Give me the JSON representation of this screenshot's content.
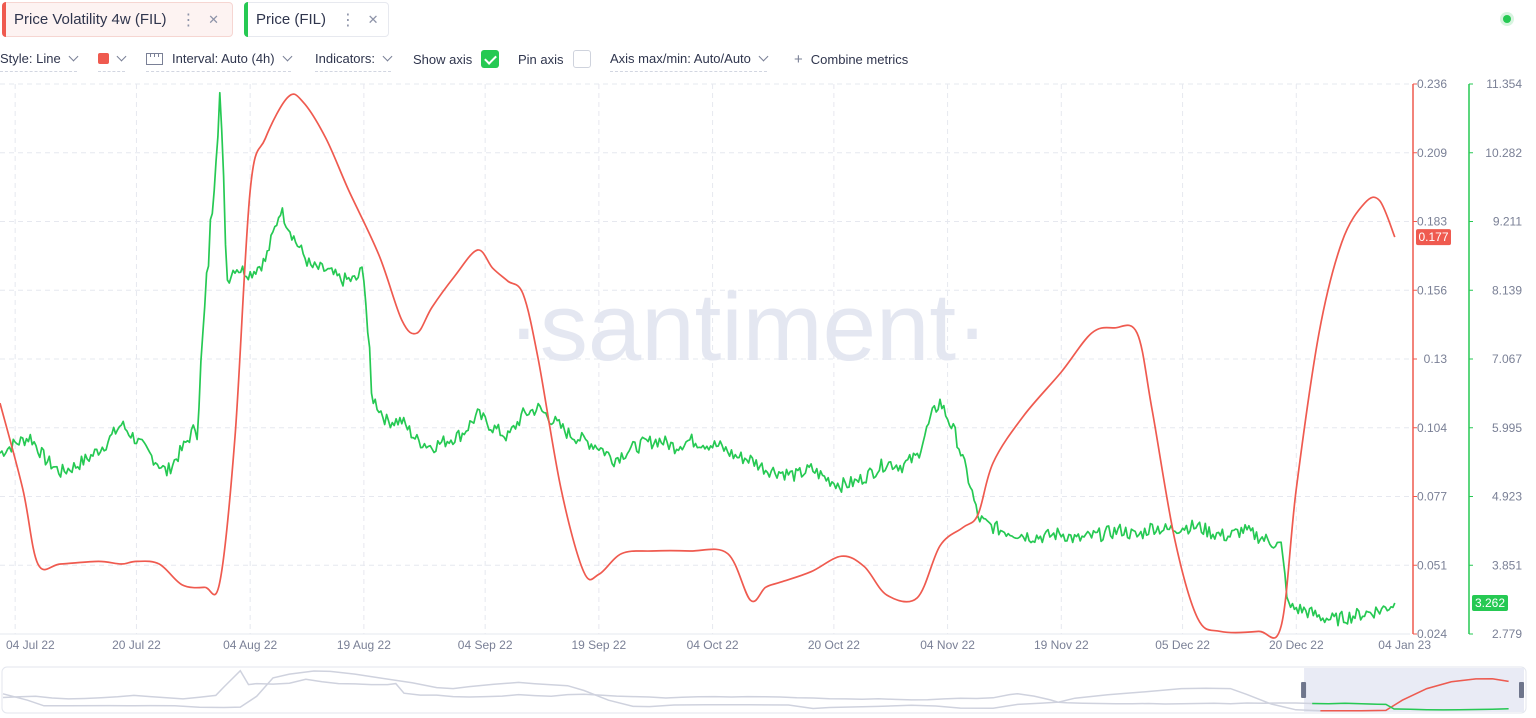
{
  "tabs": [
    {
      "label": "Price Volatility 4w (FIL)",
      "color": "#ef5a4f"
    },
    {
      "label": "Price (FIL)",
      "color": "#26c953"
    }
  ],
  "icons": {
    "menu": "⋮",
    "close": "✕"
  },
  "toolbar": {
    "style": "Style: Line",
    "interval": "Interval: Auto (4h)",
    "indicators": "Indicators:",
    "show_axis": "Show axis",
    "show_axis_checked": true,
    "pin_axis": "Pin axis",
    "pin_axis_checked": false,
    "axis_maxmin": "Axis max/min: Auto/Auto",
    "combine": "Combine metrics"
  },
  "watermark": "·santiment·",
  "chart_data": {
    "type": "line",
    "x_ticks": [
      "04 Jul 22",
      "20 Jul 22",
      "04 Aug 22",
      "19 Aug 22",
      "04 Sep 22",
      "19 Sep 22",
      "04 Oct 22",
      "20 Oct 22",
      "04 Nov 22",
      "19 Nov 22",
      "05 Dec 22",
      "20 Dec 22",
      "04 Jan 23"
    ],
    "x_range": [
      "2022-07-02",
      "2023-01-04"
    ],
    "axes": [
      {
        "series": "Price Volatility 4w (FIL)",
        "color": "#ef5a4f",
        "ticks": [
          "0.236",
          "0.209",
          "0.183",
          "0.156",
          "0.13",
          "0.104",
          "0.077",
          "0.051",
          "0.024"
        ],
        "min": 0.024,
        "max": 0.236,
        "current": "0.177"
      },
      {
        "series": "Price (FIL)",
        "color": "#26c953",
        "ticks": [
          "11.354",
          "10.282",
          "9.211",
          "8.139",
          "7.067",
          "5.995",
          "4.923",
          "3.851",
          "2.779"
        ],
        "min": 2.779,
        "max": 11.354,
        "current": "3.262"
      }
    ],
    "series": [
      {
        "name": "Price Volatility 4w (FIL)",
        "color": "#ef5a4f",
        "x": [
          "2022-07-02",
          "2022-07-05",
          "2022-07-07",
          "2022-07-10",
          "2022-07-15",
          "2022-07-18",
          "2022-07-20",
          "2022-07-23",
          "2022-07-26",
          "2022-07-29",
          "2022-07-31",
          "2022-08-02",
          "2022-08-04",
          "2022-08-06",
          "2022-08-09",
          "2022-08-11",
          "2022-08-14",
          "2022-08-17",
          "2022-08-21",
          "2022-08-24",
          "2022-08-26",
          "2022-08-28",
          "2022-08-31",
          "2022-09-03",
          "2022-09-05",
          "2022-09-07",
          "2022-09-09",
          "2022-09-11",
          "2022-09-14",
          "2022-09-17",
          "2022-09-19",
          "2022-09-22",
          "2022-09-26",
          "2022-10-01",
          "2022-10-06",
          "2022-10-09",
          "2022-10-11",
          "2022-10-13",
          "2022-10-17",
          "2022-10-21",
          "2022-10-24",
          "2022-10-27",
          "2022-10-31",
          "2022-11-03",
          "2022-11-06",
          "2022-11-08",
          "2022-11-10",
          "2022-11-14",
          "2022-11-19",
          "2022-11-23",
          "2022-11-26",
          "2022-11-29",
          "2022-12-01",
          "2022-12-04",
          "2022-12-07",
          "2022-12-10",
          "2022-12-15",
          "2022-12-18",
          "2022-12-20",
          "2022-12-23",
          "2022-12-26",
          "2022-12-29",
          "2022-12-31",
          "2023-01-02"
        ],
        "values": [
          0.113,
          0.08,
          0.051,
          0.051,
          0.052,
          0.051,
          0.052,
          0.051,
          0.043,
          0.042,
          0.044,
          0.1,
          0.195,
          0.215,
          0.231,
          0.229,
          0.215,
          0.195,
          0.17,
          0.145,
          0.14,
          0.15,
          0.162,
          0.172,
          0.165,
          0.16,
          0.155,
          0.13,
          0.08,
          0.048,
          0.047,
          0.055,
          0.056,
          0.056,
          0.055,
          0.037,
          0.042,
          0.044,
          0.048,
          0.054,
          0.05,
          0.039,
          0.038,
          0.058,
          0.065,
          0.07,
          0.09,
          0.108,
          0.125,
          0.14,
          0.142,
          0.14,
          0.11,
          0.06,
          0.03,
          0.025,
          0.025,
          0.027,
          0.08,
          0.14,
          0.175,
          0.19,
          0.191,
          0.177
        ]
      },
      {
        "name": "Price (FIL)",
        "color": "#26c953",
        "x": [
          "2022-07-02",
          "2022-07-04",
          "2022-07-06",
          "2022-07-08",
          "2022-07-10",
          "2022-07-12",
          "2022-07-14",
          "2022-07-16",
          "2022-07-18",
          "2022-07-20",
          "2022-07-22",
          "2022-07-24",
          "2022-07-26",
          "2022-07-28",
          "2022-07-29",
          "2022-07-30",
          "2022-07-31",
          "2022-08-01",
          "2022-08-02",
          "2022-08-04",
          "2022-08-06",
          "2022-08-08",
          "2022-08-10",
          "2022-08-12",
          "2022-08-14",
          "2022-08-16",
          "2022-08-18",
          "2022-08-19",
          "2022-08-20",
          "2022-08-22",
          "2022-08-24",
          "2022-08-26",
          "2022-08-28",
          "2022-08-30",
          "2022-09-01",
          "2022-09-03",
          "2022-09-05",
          "2022-09-07",
          "2022-09-09",
          "2022-09-11",
          "2022-09-13",
          "2022-09-15",
          "2022-09-17",
          "2022-09-19",
          "2022-09-21",
          "2022-09-23",
          "2022-09-25",
          "2022-09-27",
          "2022-09-29",
          "2022-10-01",
          "2022-10-03",
          "2022-10-05",
          "2022-10-07",
          "2022-10-09",
          "2022-10-11",
          "2022-10-13",
          "2022-10-15",
          "2022-10-17",
          "2022-10-19",
          "2022-10-21",
          "2022-10-23",
          "2022-10-25",
          "2022-10-27",
          "2022-10-29",
          "2022-10-31",
          "2022-11-02",
          "2022-11-03",
          "2022-11-05",
          "2022-11-07",
          "2022-11-08",
          "2022-11-09",
          "2022-11-11",
          "2022-11-13",
          "2022-11-15",
          "2022-11-17",
          "2022-11-19",
          "2022-11-21",
          "2022-11-23",
          "2022-11-25",
          "2022-11-27",
          "2022-11-29",
          "2022-12-01",
          "2022-12-03",
          "2022-12-05",
          "2022-12-07",
          "2022-12-09",
          "2022-12-11",
          "2022-12-13",
          "2022-12-15",
          "2022-12-17",
          "2022-12-18",
          "2022-12-19",
          "2022-12-21",
          "2022-12-23",
          "2022-12-25",
          "2022-12-27",
          "2022-12-29",
          "2022-12-31",
          "2023-01-01",
          "2023-01-02"
        ],
        "values": [
          5.6,
          5.75,
          5.85,
          5.5,
          5.3,
          5.4,
          5.55,
          5.75,
          6.05,
          5.8,
          5.55,
          5.3,
          5.65,
          6.05,
          7.8,
          9.5,
          11.2,
          8.3,
          8.5,
          8.4,
          8.6,
          9.4,
          8.9,
          8.5,
          8.45,
          8.3,
          8.3,
          8.5,
          6.5,
          6.1,
          6.1,
          5.8,
          5.7,
          5.8,
          5.9,
          6.2,
          6.0,
          5.85,
          6.2,
          6.3,
          6.1,
          5.9,
          5.8,
          5.7,
          5.5,
          5.65,
          5.75,
          5.8,
          5.7,
          5.8,
          5.75,
          5.7,
          5.55,
          5.5,
          5.35,
          5.3,
          5.25,
          5.35,
          5.2,
          5.1,
          5.15,
          5.3,
          5.45,
          5.4,
          5.55,
          6.2,
          6.4,
          5.9,
          5.1,
          4.6,
          4.5,
          4.4,
          4.35,
          4.3,
          4.3,
          4.35,
          4.25,
          4.3,
          4.35,
          4.4,
          4.3,
          4.45,
          4.4,
          4.45,
          4.45,
          4.35,
          4.3,
          4.4,
          4.3,
          4.2,
          4.15,
          3.2,
          3.15,
          3.05,
          3.0,
          3.05,
          3.1,
          3.15,
          3.2,
          3.262
        ]
      }
    ],
    "grid": true,
    "minimap": {
      "highlight_range": [
        "2022-12-08",
        "2023-01-04"
      ]
    }
  }
}
